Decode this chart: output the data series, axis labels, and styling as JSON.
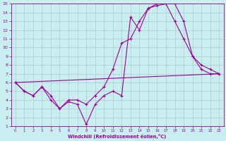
{
  "xlabel": "Windchill (Refroidissement éolien,°C)",
  "xlim": [
    -0.5,
    23.5
  ],
  "ylim": [
    1,
    15
  ],
  "xticks": [
    0,
    1,
    2,
    3,
    4,
    5,
    6,
    7,
    8,
    9,
    10,
    11,
    12,
    13,
    14,
    15,
    16,
    17,
    18,
    19,
    20,
    21,
    22,
    23
  ],
  "yticks": [
    1,
    2,
    3,
    4,
    5,
    6,
    7,
    8,
    9,
    10,
    11,
    12,
    13,
    14,
    15
  ],
  "bg_color": "#c8eef0",
  "line_color": "#990099",
  "grid_color": "#b0c8d0",
  "line1_x": [
    0,
    1,
    2,
    3,
    4,
    5,
    6,
    7,
    8,
    9,
    10,
    11,
    12,
    13,
    14,
    15,
    16,
    17,
    18,
    19,
    20,
    21,
    22,
    23
  ],
  "line1_y": [
    6.0,
    5.0,
    4.5,
    5.5,
    4.5,
    3.0,
    4.0,
    4.0,
    3.5,
    4.5,
    5.5,
    7.5,
    10.5,
    11.0,
    13.0,
    14.5,
    15.0,
    15.0,
    13.0,
    11.0,
    9.0,
    7.5,
    7.0,
    7.0
  ],
  "line2_x": [
    0,
    1,
    2,
    3,
    4,
    5,
    6,
    7,
    8,
    9,
    10,
    11,
    12,
    13,
    14,
    15,
    16,
    17,
    18,
    19,
    20,
    21,
    22,
    23
  ],
  "line2_y": [
    6.0,
    5.0,
    4.5,
    5.5,
    4.0,
    3.0,
    3.8,
    3.5,
    1.2,
    3.5,
    4.5,
    5.0,
    4.5,
    13.5,
    12.0,
    14.5,
    14.8,
    15.0,
    15.0,
    13.0,
    9.0,
    8.0,
    7.5,
    7.0
  ],
  "line3_x": [
    0,
    23
  ],
  "line3_y": [
    6.0,
    7.0
  ]
}
